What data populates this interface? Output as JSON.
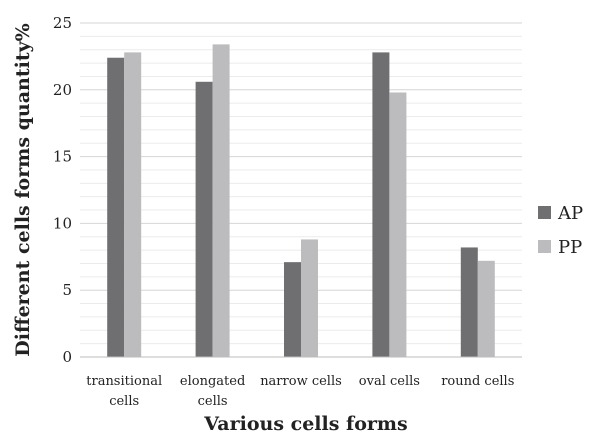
{
  "chart_data": {
    "type": "bar",
    "categories": [
      [
        "transitional",
        "cells"
      ],
      [
        "elongated",
        "cells"
      ],
      [
        "narrow cells"
      ],
      [
        "oval cells"
      ],
      [
        "round cells"
      ]
    ],
    "series": [
      {
        "name": "AP",
        "values": [
          22.4,
          20.6,
          7.1,
          22.8,
          8.2
        ],
        "color": "#6f6f72"
      },
      {
        "name": "PP",
        "values": [
          22.8,
          23.4,
          8.8,
          19.8,
          7.2
        ],
        "color": "#bcbcbe"
      }
    ],
    "xlabel": "Various cells forms",
    "ylabel": "Different cells forms quantity%",
    "ylim": [
      0,
      25
    ],
    "yticks": [
      0,
      5,
      10,
      15,
      20,
      25
    ],
    "grid": true,
    "legend_position": "right"
  }
}
